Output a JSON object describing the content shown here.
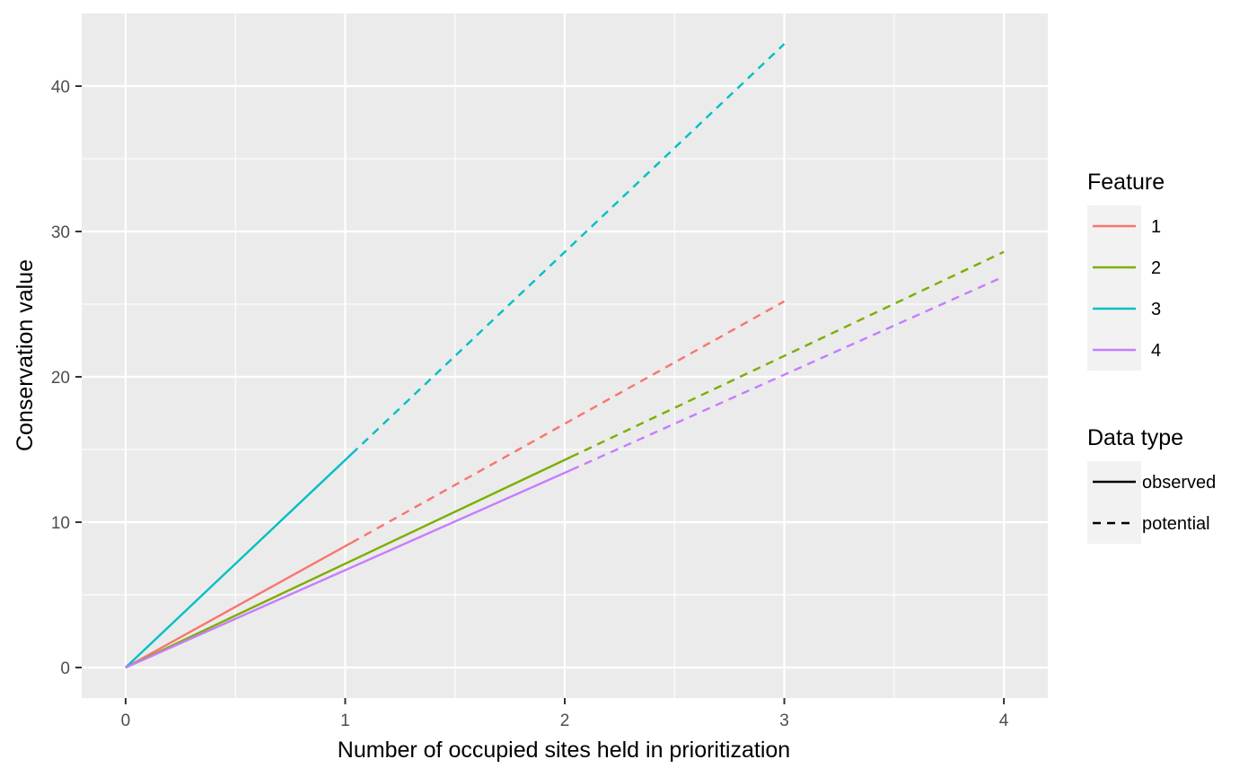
{
  "chart_data": {
    "type": "line",
    "title": "",
    "xlabel": "Number of occupied sites held in prioritization",
    "ylabel": "Conservation value",
    "xlim": [
      -0.2,
      4.2
    ],
    "ylim": [
      -2.1,
      45.0
    ],
    "x_ticks": [
      0,
      1,
      2,
      3,
      4
    ],
    "y_ticks": [
      0,
      10,
      20,
      30,
      40
    ],
    "grid": true,
    "legend_position": "right",
    "legend_color": {
      "title": "Feature",
      "entries": [
        {
          "label": "1",
          "color": "#F8766D"
        },
        {
          "label": "2",
          "color": "#7CAE00"
        },
        {
          "label": "3",
          "color": "#00BFC4"
        },
        {
          "label": "4",
          "color": "#C77CFF"
        }
      ]
    },
    "legend_linetype": {
      "title": "Data type",
      "entries": [
        {
          "label": "observed",
          "linetype": "solid"
        },
        {
          "label": "potential",
          "linetype": "dashed"
        }
      ]
    },
    "series": [
      {
        "name": "1",
        "color": "#F8766D",
        "linetype": "solid",
        "x": [
          0,
          1.03
        ],
        "y": [
          0,
          8.6
        ]
      },
      {
        "name": "1",
        "color": "#F8766D",
        "linetype": "dashed",
        "x": [
          1.03,
          3.0
        ],
        "y": [
          8.6,
          25.2
        ]
      },
      {
        "name": "2",
        "color": "#7CAE00",
        "linetype": "solid",
        "x": [
          0,
          2.03
        ],
        "y": [
          0,
          14.5
        ]
      },
      {
        "name": "2",
        "color": "#7CAE00",
        "linetype": "dashed",
        "x": [
          2.03,
          4.0
        ],
        "y": [
          14.5,
          28.6
        ]
      },
      {
        "name": "3",
        "color": "#00BFC4",
        "linetype": "solid",
        "x": [
          0,
          1.03
        ],
        "y": [
          0,
          14.7
        ]
      },
      {
        "name": "3",
        "color": "#00BFC4",
        "linetype": "dashed",
        "x": [
          1.03,
          3.0
        ],
        "y": [
          14.7,
          42.9
        ]
      },
      {
        "name": "4",
        "color": "#C77CFF",
        "linetype": "solid",
        "x": [
          0,
          2.03
        ],
        "y": [
          0,
          13.6
        ]
      },
      {
        "name": "4",
        "color": "#C77CFF",
        "linetype": "dashed",
        "x": [
          2.03,
          4.0
        ],
        "y": [
          13.6,
          26.9
        ]
      }
    ]
  }
}
